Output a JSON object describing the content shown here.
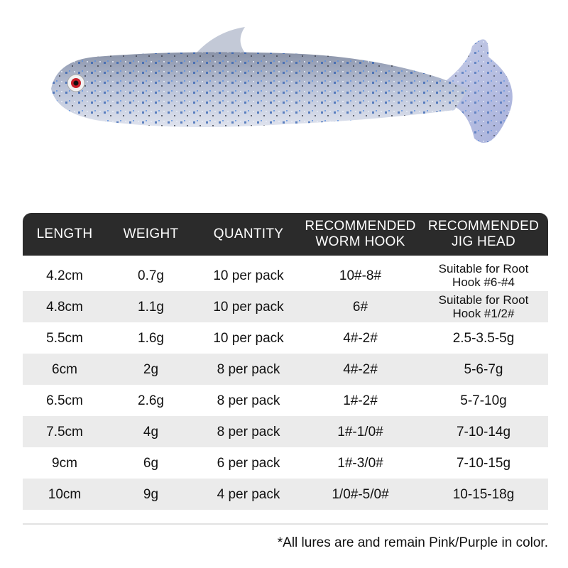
{
  "table": {
    "header": [
      "LENGTH",
      "WEIGHT",
      "QUANTITY",
      "RECOMMENDED WORM HOOK",
      "RECOMMENDED JIG HEAD"
    ],
    "rows": [
      [
        "4.2cm",
        "0.7g",
        "10 per pack",
        "10#-8#",
        "Suitable for Root Hook #6-#4"
      ],
      [
        "4.8cm",
        "1.1g",
        "10 per pack",
        "6#",
        "Suitable for Root Hook #1/2#"
      ],
      [
        "5.5cm",
        "1.6g",
        "10 per pack",
        "4#-2#",
        "2.5-3.5-5g"
      ],
      [
        "6cm",
        "2g",
        "8 per pack",
        "4#-2#",
        "5-6-7g"
      ],
      [
        "6.5cm",
        "2.6g",
        "8 per pack",
        "1#-2#",
        "5-7-10g"
      ],
      [
        "7.5cm",
        "4g",
        "8 per pack",
        "1#-1/0#",
        "7-10-14g"
      ],
      [
        "9cm",
        "6g",
        "6 per pack",
        "1#-3/0#",
        "7-10-15g"
      ],
      [
        "10cm",
        "9g",
        "4 per pack",
        "1/0#-5/0#",
        "10-15-18g"
      ]
    ]
  },
  "footnote": "*All lures are and remain Pink/Purple in color."
}
